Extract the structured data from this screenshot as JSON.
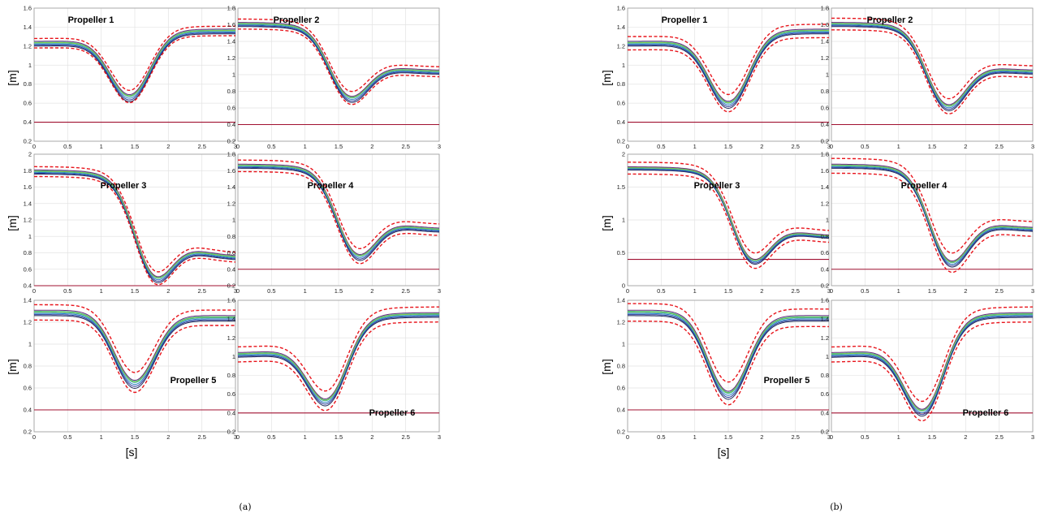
{
  "labels": {
    "ylabel": "[m]",
    "xlabel": "[s]",
    "caption_a": "(a)",
    "caption_b": "(b)"
  },
  "colors": {
    "bound": "#e8141b",
    "threshold": "#a01030",
    "lines": [
      "#1f2a5a",
      "#2a3a99",
      "#2a7fc0",
      "#2aa3b5",
      "#3cc0a0",
      "#6a2a7a",
      "#88cc44"
    ],
    "grid": "#e3e3e3"
  },
  "chart_data": [
    {
      "panel": "a",
      "title": "Propeller 1",
      "type": "line",
      "xlim": [
        0,
        3
      ],
      "ylim": [
        0.2,
        1.6
      ],
      "yticks": [
        "0.2",
        "0.4",
        "0.6",
        "0.8",
        "1",
        "1.2",
        "1.4",
        "1.6"
      ],
      "xticks": [
        "0",
        "0.5",
        "1",
        "1.5",
        "2",
        "2.5",
        "3"
      ],
      "threshold": 0.4,
      "start": 1.23,
      "min": 0.67,
      "tmin": 1.42,
      "end": 1.36,
      "bound_margin": 0.05,
      "grid": true
    },
    {
      "panel": "a",
      "title": "Propeller 2",
      "type": "line",
      "xlim": [
        0,
        3
      ],
      "ylim": [
        0.2,
        1.8
      ],
      "yticks": [
        "0.2",
        "0.4",
        "0.6",
        "0.8",
        "1",
        "1.2",
        "1.4",
        "1.6",
        "1.8"
      ],
      "xticks": [
        "0",
        "0.5",
        "1",
        "1.5",
        "2",
        "2.5",
        "3"
      ],
      "threshold": 0.4,
      "start": 1.61,
      "min": 0.72,
      "tmin": 1.7,
      "end": 1.03,
      "bound_margin": 0.06,
      "grid": true
    },
    {
      "panel": "a",
      "title": "Propeller 3",
      "type": "line",
      "xlim": [
        0,
        3
      ],
      "ylim": [
        0.4,
        2.0
      ],
      "yticks": [
        "0.4",
        "0.6",
        "0.8",
        "1",
        "1.2",
        "1.4",
        "1.6",
        "1.8",
        "2"
      ],
      "xticks": [
        "0",
        "0.5",
        "1",
        "1.5",
        "2",
        "2.5",
        "3"
      ],
      "threshold": 0.4,
      "start": 1.79,
      "min": 0.49,
      "tmin": 1.85,
      "end": 0.73,
      "bound_margin": 0.06,
      "grid": true
    },
    {
      "panel": "a",
      "title": "Propeller 4",
      "type": "line",
      "xlim": [
        0,
        3
      ],
      "ylim": [
        0.2,
        1.8
      ],
      "yticks": [
        "0.2",
        "0.4",
        "0.6",
        "0.8",
        "1",
        "1.2",
        "1.4",
        "1.6",
        "1.8"
      ],
      "xticks": [
        "0",
        "0.5",
        "1",
        "1.5",
        "2",
        "2.5",
        "3"
      ],
      "threshold": 0.4,
      "start": 1.66,
      "min": 0.56,
      "tmin": 1.82,
      "end": 0.87,
      "bound_margin": 0.07,
      "grid": true
    },
    {
      "panel": "a",
      "title": "Propeller 5",
      "type": "line",
      "xlim": [
        0,
        3
      ],
      "ylim": [
        0.2,
        1.4
      ],
      "yticks": [
        "0.2",
        "0.4",
        "0.6",
        "0.8",
        "1",
        "1.2",
        "1.4"
      ],
      "xticks": [
        "0",
        "0.5",
        "1",
        "1.5",
        "2",
        "2.5",
        "3"
      ],
      "threshold": 0.4,
      "start": 1.29,
      "min": 0.65,
      "tmin": 1.5,
      "end": 1.24,
      "bound_margin": 0.07,
      "grid": true
    },
    {
      "panel": "a",
      "title": "Propeller 6",
      "type": "line",
      "xlim": [
        0,
        3
      ],
      "ylim": [
        0.2,
        1.6
      ],
      "yticks": [
        "0.2",
        "0.4",
        "0.6",
        "0.8",
        "1",
        "1.2",
        "1.4",
        "1.6"
      ],
      "xticks": [
        "0",
        "0.5",
        "1",
        "1.5",
        "2",
        "2.5",
        "3"
      ],
      "threshold": 0.4,
      "start": 1.02,
      "min": 0.53,
      "tmin": 1.3,
      "end": 1.45,
      "bound_margin": 0.08,
      "grid": true
    },
    {
      "panel": "b",
      "title": "Propeller 1",
      "type": "line",
      "xlim": [
        0,
        3
      ],
      "ylim": [
        0.2,
        1.6
      ],
      "yticks": [
        "0.2",
        "0.4",
        "0.6",
        "0.8",
        "1",
        "1.2",
        "1.4",
        "1.6"
      ],
      "xticks": [
        "0",
        "0.5",
        "1",
        "1.5",
        "2",
        "2.5",
        "3"
      ],
      "threshold": 0.4,
      "start": 1.23,
      "min": 0.6,
      "tmin": 1.5,
      "end": 1.36,
      "bound_margin": 0.07,
      "grid": true
    },
    {
      "panel": "b",
      "title": "Propeller 2",
      "type": "line",
      "xlim": [
        0,
        3
      ],
      "ylim": [
        0.2,
        1.8
      ],
      "yticks": [
        "0.2",
        "0.4",
        "0.6",
        "0.8",
        "1",
        "1.2",
        "1.4",
        "1.6",
        "1.8"
      ],
      "xticks": [
        "0",
        "0.5",
        "1",
        "1.5",
        "2",
        "2.5",
        "3"
      ],
      "threshold": 0.4,
      "start": 1.61,
      "min": 0.62,
      "tmin": 1.75,
      "end": 1.03,
      "bound_margin": 0.07,
      "grid": true
    },
    {
      "panel": "b",
      "title": "Propeller 3",
      "type": "line",
      "xlim": [
        0,
        3
      ],
      "ylim": [
        0,
        2
      ],
      "yticks": [
        "0",
        "0.5",
        "1",
        "1.5",
        "2"
      ],
      "xticks": [
        "0",
        "0.5",
        "1",
        "1.5",
        "2",
        "2.5",
        "3"
      ],
      "threshold": 0.4,
      "start": 1.79,
      "min": 0.38,
      "tmin": 1.9,
      "end": 0.73,
      "bound_margin": 0.09,
      "grid": true
    },
    {
      "panel": "b",
      "title": "Propeller 4",
      "type": "line",
      "xlim": [
        0,
        3
      ],
      "ylim": [
        0.2,
        1.8
      ],
      "yticks": [
        "0.2",
        "0.4",
        "0.6",
        "0.8",
        "1",
        "1.2",
        "1.4",
        "1.6",
        "1.8"
      ],
      "xticks": [
        "0",
        "0.5",
        "1",
        "1.5",
        "2",
        "2.5",
        "3"
      ],
      "threshold": 0.4,
      "start": 1.66,
      "min": 0.48,
      "tmin": 1.8,
      "end": 0.88,
      "bound_margin": 0.09,
      "grid": true
    },
    {
      "panel": "b",
      "title": "Propeller 5",
      "type": "line",
      "xlim": [
        0,
        3
      ],
      "ylim": [
        0.2,
        1.4
      ],
      "yticks": [
        "0.2",
        "0.4",
        "0.6",
        "0.8",
        "1",
        "1.2",
        "1.4"
      ],
      "xticks": [
        "0",
        "0.5",
        "1",
        "1.5",
        "2",
        "2.5",
        "3"
      ],
      "threshold": 0.4,
      "start": 1.29,
      "min": 0.55,
      "tmin": 1.5,
      "end": 1.24,
      "bound_margin": 0.08,
      "grid": true
    },
    {
      "panel": "b",
      "title": "Propeller 6",
      "type": "line",
      "xlim": [
        0,
        3
      ],
      "ylim": [
        0.2,
        1.6
      ],
      "yticks": [
        "0.2",
        "0.4",
        "0.6",
        "0.8",
        "1",
        "1.2",
        "1.4",
        "1.6"
      ],
      "xticks": [
        "0",
        "0.5",
        "1",
        "1.5",
        "2",
        "2.5",
        "3"
      ],
      "threshold": 0.4,
      "start": 1.02,
      "min": 0.42,
      "tmin": 1.35,
      "end": 1.45,
      "bound_margin": 0.08,
      "grid": true
    }
  ]
}
